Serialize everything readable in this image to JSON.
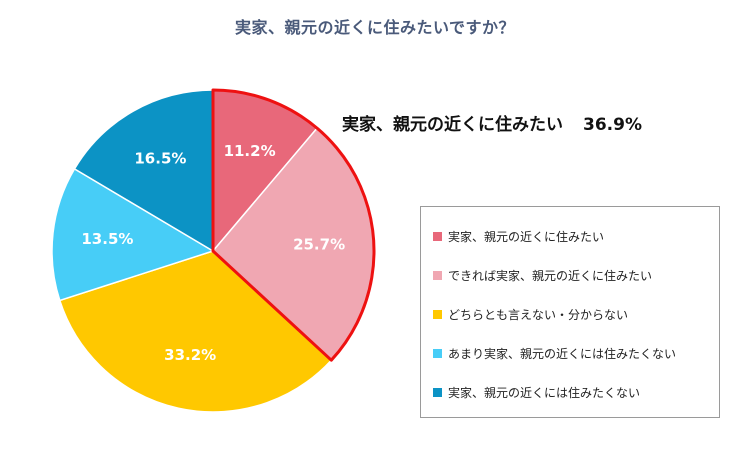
{
  "chart_data": {
    "type": "pie",
    "title": "実家、親元の近くに住みたいですか？",
    "start": "12 o'clock, clockwise",
    "slices": [
      {
        "label": "実家、親元の近くに住みたい",
        "value": 11.2,
        "value_label": "11.2%",
        "color": "#e8687a"
      },
      {
        "label": "できれば実家、親元の近くに住みたい",
        "value": 25.7,
        "value_label": "25.7%",
        "color": "#f0a7b2"
      },
      {
        "label": "どちらとも言えない・分からない",
        "value": 33.2,
        "value_label": "33.2%",
        "color": "#ffc800"
      },
      {
        "label": "あまり実家、親元の近くには住みたくない",
        "value": 13.5,
        "value_label": "13.5%",
        "color": "#47cdf7"
      },
      {
        "label": "実家、親元の近くには住みたくない",
        "value": 16.5,
        "value_label": "16.5%",
        "color": "#0c93c5"
      }
    ],
    "highlight": {
      "slices": [
        0,
        1
      ],
      "outline_color": "#ee1111",
      "label": "実家、親元の近くに住みたい",
      "value": 36.9,
      "value_label": "36.9%"
    },
    "legend": "right",
    "label_color": "#ffffff"
  }
}
